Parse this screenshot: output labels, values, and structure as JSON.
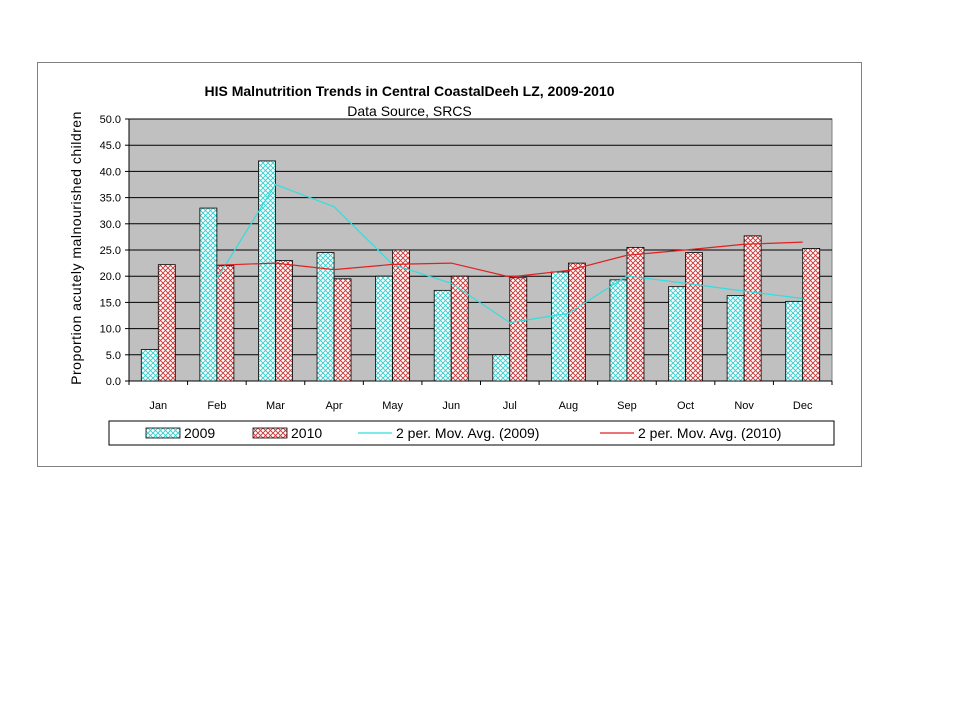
{
  "chart_data": {
    "type": "bar",
    "title": "HIS Malnutrition Trends in Central CoastalDeeh  LZ, 2009-2010",
    "subtitle": "Data Source, SRCS",
    "ylabel": "Proportion acutely malnourished children",
    "xlabel": "",
    "ylim": [
      0,
      50
    ],
    "yticks": [
      "0.0",
      "5.0",
      "10.0",
      "15.0",
      "20.0",
      "25.0",
      "30.0",
      "35.0",
      "40.0",
      "45.0",
      "50.0"
    ],
    "grid": true,
    "legend_position": "bottom",
    "categories": [
      "Jan",
      "Feb",
      "Mar",
      "Apr",
      "May",
      "Jun",
      "Jul",
      "Aug",
      "Sep",
      "Oct",
      "Nov",
      "Dec"
    ],
    "series": [
      {
        "name": "2009",
        "kind": "bar",
        "color": "#33cccc",
        "values": [
          6.0,
          33.0,
          42.0,
          24.5,
          20.0,
          17.3,
          5.0,
          20.8,
          19.3,
          18.0,
          16.3,
          15.2
        ]
      },
      {
        "name": "2010",
        "kind": "bar",
        "color": "#cc3333",
        "values": [
          22.2,
          22.0,
          23.0,
          19.5,
          25.0,
          20.0,
          19.7,
          22.5,
          25.5,
          24.5,
          27.7,
          25.3
        ]
      },
      {
        "name": "2 per. Mov. Avg. (2009)",
        "kind": "line",
        "color": "#33dddd",
        "values": [
          null,
          19.5,
          37.5,
          33.25,
          22.25,
          18.65,
          11.15,
          12.9,
          20.05,
          18.65,
          17.15,
          15.75
        ]
      },
      {
        "name": "2 per. Mov. Avg. (2010)",
        "kind": "line",
        "color": "#e02020",
        "values": [
          null,
          22.1,
          22.5,
          21.25,
          22.25,
          22.5,
          19.85,
          21.1,
          24.0,
          25.0,
          26.1,
          26.5
        ]
      }
    ],
    "plot_background": "#c0c0c0"
  }
}
